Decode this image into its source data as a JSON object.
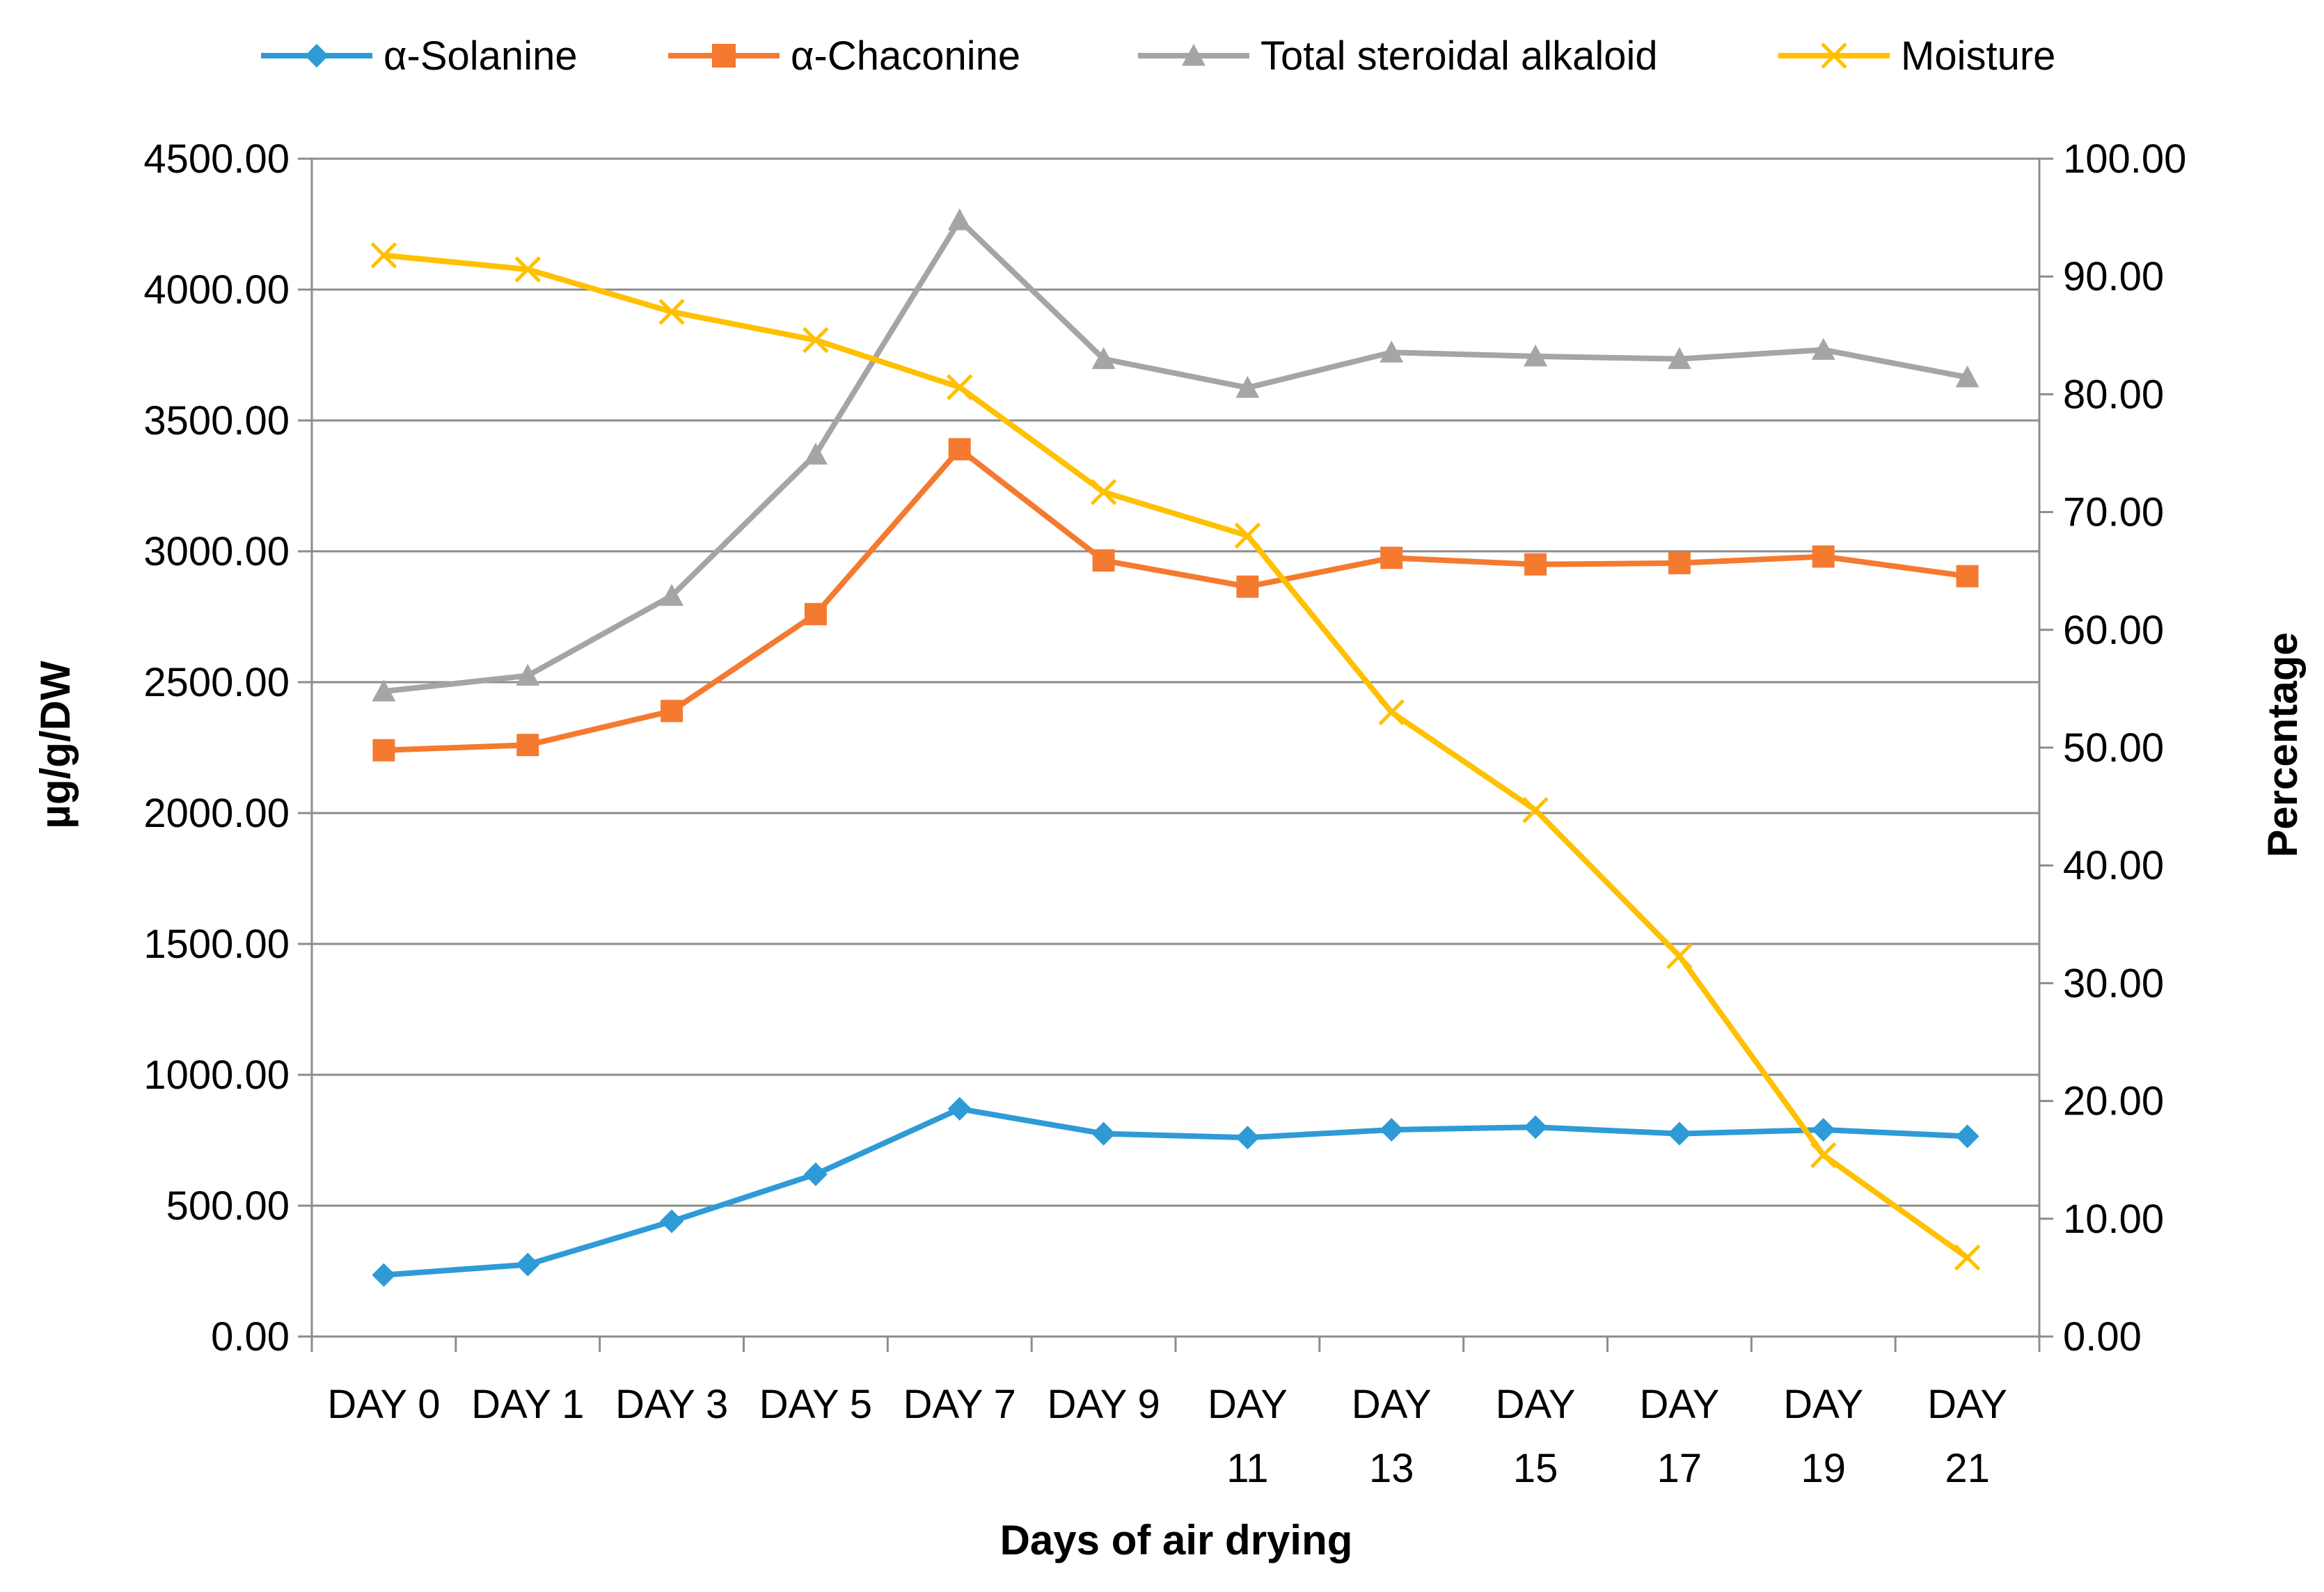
{
  "chart_data": {
    "type": "line",
    "title": "",
    "xlabel": "Days of air drying",
    "ylabel": "µg/g/DW",
    "ylabel_right": "Percentage",
    "categories": [
      [
        "DAY 0"
      ],
      [
        "DAY 1"
      ],
      [
        "DAY 3"
      ],
      [
        "DAY 5"
      ],
      [
        "DAY 7"
      ],
      [
        "DAY 9"
      ],
      [
        "DAY",
        "11"
      ],
      [
        "DAY",
        "13"
      ],
      [
        "DAY",
        "15"
      ],
      [
        "DAY",
        "17"
      ],
      [
        "DAY",
        "19"
      ],
      [
        "DAY",
        "21"
      ]
    ],
    "ylim": [
      0,
      4500
    ],
    "ylim_right": [
      0,
      100
    ],
    "y_ticks": [
      "0.00",
      "500.00",
      "1000.00",
      "1500.00",
      "2000.00",
      "2500.00",
      "3000.00",
      "3500.00",
      "4000.00",
      "4500.00"
    ],
    "y_ticks_right": [
      "0.00",
      "10.00",
      "20.00",
      "30.00",
      "40.00",
      "50.00",
      "60.00",
      "70.00",
      "80.00",
      "90.00",
      "100.00"
    ],
    "grid": true,
    "legend_position": "top",
    "series": [
      {
        "name": "α-Solanine",
        "axis": "left",
        "color": "#2e9bd6",
        "marker": "diamond",
        "values": [
          235,
          275,
          440,
          620,
          870,
          775,
          760,
          790,
          800,
          775,
          790,
          765
        ]
      },
      {
        "name": "α-Chaconine",
        "axis": "left",
        "color": "#f47a30",
        "marker": "square",
        "values": [
          2240,
          2260,
          2390,
          2760,
          3390,
          2965,
          2865,
          2975,
          2950,
          2955,
          2980,
          2905
        ]
      },
      {
        "name": "Total steroidal alkaloid",
        "axis": "left",
        "color": "#a5a5a5",
        "marker": "triangle",
        "values": [
          2465,
          2525,
          2830,
          3370,
          4265,
          3735,
          3625,
          3760,
          3745,
          3735,
          3770,
          3665
        ]
      },
      {
        "name": "Moisture",
        "axis": "right",
        "color": "#ffc000",
        "marker": "x",
        "values": [
          91.8,
          90.6,
          87.0,
          84.6,
          80.6,
          71.7,
          68.0,
          53.0,
          44.7,
          32.3,
          15.4,
          6.7
        ]
      }
    ]
  }
}
